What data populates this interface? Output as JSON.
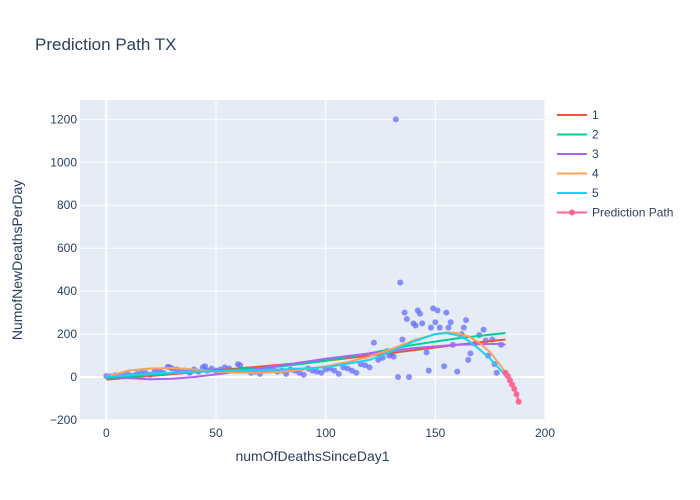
{
  "chart_data": {
    "type": "scatter",
    "title": "Prediction Path TX",
    "xlabel": "numOfDeathsSinceDay1",
    "ylabel": "NumofNewDeathsPerDay",
    "xlim": [
      -12,
      200
    ],
    "ylim": [
      -200,
      1290
    ],
    "x_ticks": [
      0,
      50,
      100,
      150,
      200
    ],
    "y_ticks": [
      -200,
      0,
      200,
      400,
      600,
      800,
      1000,
      1200
    ],
    "grid": true,
    "legend_position": "right",
    "colors": {
      "plot_bg": "#e5ecf6",
      "grid": "#ffffff",
      "observed": "#636efa",
      "fit1": "#ef553b",
      "fit2": "#00cc96",
      "fit3": "#ab63fa",
      "fit4": "#ffa15a",
      "fit5": "#19d3f3",
      "prediction": "#ff6692"
    },
    "observed": {
      "x": [
        0,
        2,
        4,
        6,
        8,
        10,
        12,
        14,
        16,
        18,
        20,
        22,
        24,
        26,
        28,
        29,
        30,
        32,
        34,
        36,
        38,
        40,
        42,
        44,
        45,
        46,
        48,
        50,
        52,
        54,
        56,
        58,
        60,
        61,
        62,
        64,
        66,
        68,
        70,
        72,
        74,
        76,
        78,
        80,
        82,
        84,
        86,
        88,
        90,
        92,
        94,
        96,
        98,
        100,
        102,
        104,
        106,
        108,
        110,
        112,
        114,
        116,
        118,
        120,
        122,
        124,
        126,
        128,
        129,
        130,
        131,
        132,
        133,
        134,
        135,
        136,
        137,
        138,
        140,
        141,
        142,
        143,
        144,
        146,
        147,
        148,
        149,
        150,
        151,
        152,
        154,
        155,
        156,
        157,
        158,
        160,
        162,
        163,
        164,
        165,
        166,
        168,
        170,
        172,
        173,
        174,
        176,
        177,
        178,
        180
      ],
      "y": [
        5,
        3,
        8,
        2,
        10,
        12,
        6,
        15,
        20,
        18,
        10,
        25,
        30,
        20,
        48,
        45,
        40,
        35,
        25,
        30,
        20,
        35,
        25,
        45,
        50,
        30,
        40,
        30,
        35,
        45,
        40,
        30,
        60,
        55,
        30,
        35,
        20,
        25,
        15,
        30,
        35,
        40,
        25,
        30,
        15,
        35,
        30,
        20,
        10,
        40,
        30,
        25,
        20,
        35,
        40,
        30,
        15,
        45,
        40,
        30,
        20,
        60,
        55,
        45,
        160,
        80,
        90,
        120,
        100,
        110,
        95,
        1200,
        0,
        440,
        175,
        300,
        270,
        0,
        250,
        240,
        310,
        295,
        250,
        115,
        30,
        230,
        320,
        255,
        310,
        230,
        50,
        300,
        230,
        255,
        150,
        25,
        200,
        230,
        265,
        80,
        110,
        155,
        195,
        220,
        170,
        100,
        175,
        60,
        20,
        150
      ],
      "name": ""
    },
    "series": [
      {
        "name": "1",
        "x": [
          0,
          20,
          40,
          60,
          80,
          100,
          120,
          140,
          160,
          182
        ],
        "y": [
          -12,
          5,
          22,
          40,
          58,
          76,
          100,
          125,
          150,
          175
        ]
      },
      {
        "name": "2",
        "x": [
          0,
          20,
          40,
          60,
          80,
          100,
          120,
          140,
          160,
          182
        ],
        "y": [
          -8,
          10,
          25,
          35,
          50,
          75,
          110,
          150,
          180,
          205
        ]
      },
      {
        "name": "3",
        "x": [
          0,
          10,
          20,
          30,
          40,
          60,
          80,
          100,
          120,
          140,
          160,
          180,
          182
        ],
        "y": [
          0,
          -5,
          -10,
          -8,
          0,
          25,
          55,
          85,
          110,
          135,
          150,
          155,
          150
        ]
      },
      {
        "name": "4",
        "x": [
          0,
          10,
          20,
          30,
          40,
          50,
          60,
          70,
          80,
          90,
          100,
          110,
          120,
          130,
          140,
          150,
          155,
          160,
          165,
          170,
          175,
          180,
          182
        ],
        "y": [
          0,
          30,
          40,
          42,
          35,
          25,
          20,
          20,
          25,
          35,
          50,
          70,
          95,
          130,
          170,
          200,
          208,
          205,
          190,
          160,
          115,
          50,
          20
        ]
      },
      {
        "name": "5",
        "x": [
          0,
          20,
          40,
          60,
          80,
          100,
          120,
          130,
          140,
          150,
          155,
          160,
          165,
          170,
          175,
          180,
          182
        ],
        "y": [
          0,
          15,
          25,
          30,
          35,
          45,
          80,
          120,
          165,
          200,
          205,
          195,
          170,
          130,
          85,
          30,
          5
        ]
      },
      {
        "name": "Prediction Path",
        "x": [
          182,
          183,
          184,
          185,
          186,
          187,
          188
        ],
        "y": [
          20,
          5,
          -15,
          -35,
          -55,
          -80,
          -115
        ]
      }
    ]
  }
}
